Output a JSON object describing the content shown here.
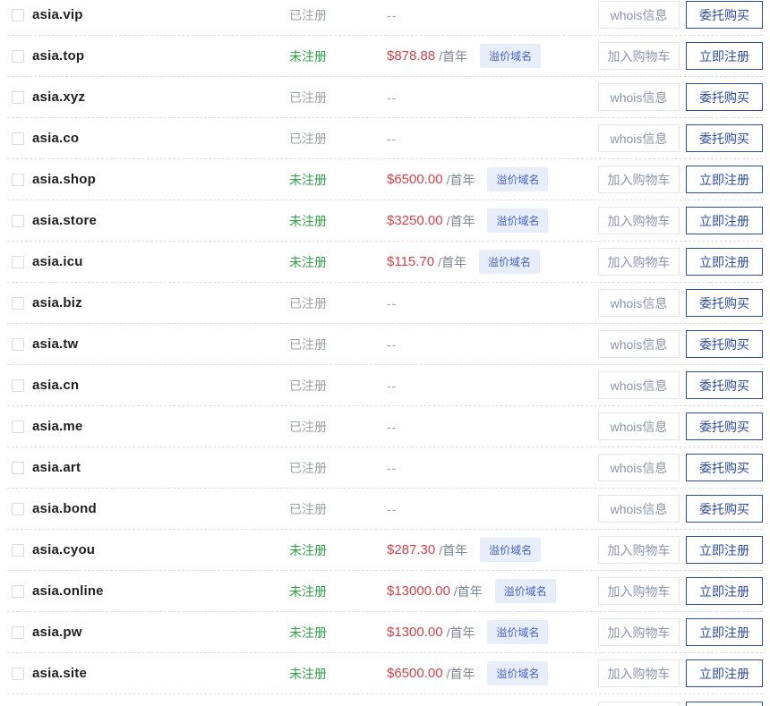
{
  "page": {
    "list_name": "domain-search-results",
    "tld_keyword": "asia"
  },
  "labels": {
    "registered": "已注册",
    "unregistered": "未注册",
    "no_price": "--",
    "price_unit": "/首年",
    "premium_badge": "溢价域名",
    "whois_button": "whois信息",
    "delegate_buy_button": "委托购买",
    "add_to_cart_button": "加入购物车",
    "register_now_button": "立即注册"
  },
  "colors": {
    "registered_status": "#9b9fa8",
    "unregistered_status": "#2ba245",
    "price": "#d9404a",
    "price_unit": "#7e8591",
    "badge_text": "#4662c5",
    "badge_bg": "#e8edfa",
    "primary_button": "#2b4aa5",
    "secondary_button_text": "#8b96ab",
    "secondary_button_border": "#e4e5e9",
    "domain_text": "#1f1f1f",
    "divider": "#dcdcdc"
  },
  "rows": [
    {
      "domain": "asia.vip",
      "status": "registered",
      "price": null
    },
    {
      "domain": "asia.top",
      "status": "unregistered",
      "price": "$878.88"
    },
    {
      "domain": "asia.xyz",
      "status": "registered",
      "price": null
    },
    {
      "domain": "asia.co",
      "status": "registered",
      "price": null
    },
    {
      "domain": "asia.shop",
      "status": "unregistered",
      "price": "$6500.00"
    },
    {
      "domain": "asia.store",
      "status": "unregistered",
      "price": "$3250.00"
    },
    {
      "domain": "asia.icu",
      "status": "unregistered",
      "price": "$115.70"
    },
    {
      "domain": "asia.biz",
      "status": "registered",
      "price": null
    },
    {
      "domain": "asia.tw",
      "status": "registered",
      "price": null
    },
    {
      "domain": "asia.cn",
      "status": "registered",
      "price": null
    },
    {
      "domain": "asia.me",
      "status": "registered",
      "price": null
    },
    {
      "domain": "asia.art",
      "status": "registered",
      "price": null
    },
    {
      "domain": "asia.bond",
      "status": "registered",
      "price": null
    },
    {
      "domain": "asia.cyou",
      "status": "unregistered",
      "price": "$287.30"
    },
    {
      "domain": "asia.online",
      "status": "unregistered",
      "price": "$13000.00"
    },
    {
      "domain": "asia.pw",
      "status": "unregistered",
      "price": "$1300.00"
    },
    {
      "domain": "asia.site",
      "status": "unregistered",
      "price": "$6500.00"
    }
  ],
  "partial_next_row": true
}
